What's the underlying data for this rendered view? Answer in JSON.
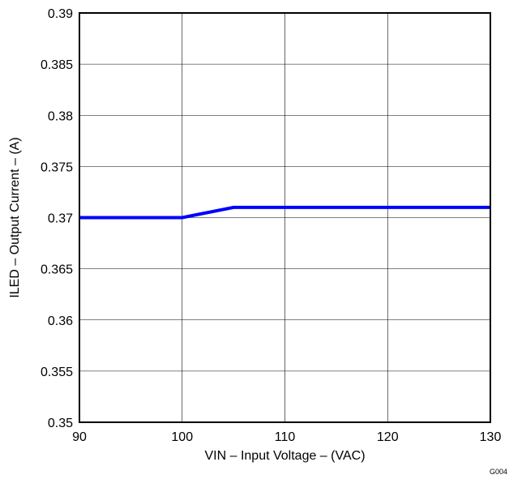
{
  "chart_data": {
    "type": "line",
    "xlabel": "VIN – Input Voltage – (VAC)",
    "ylabel": "ILED – Output Current – (A)",
    "xlim": [
      90,
      130
    ],
    "ylim": [
      0.35,
      0.39
    ],
    "xticks": [
      "90",
      "100",
      "110",
      "120",
      "130"
    ],
    "yticks": [
      "0.35",
      "0.355",
      "0.36",
      "0.365",
      "0.37",
      "0.375",
      "0.38",
      "0.385",
      "0.39"
    ],
    "grid": true,
    "series": [
      {
        "color": "#0000ff",
        "x": [
          90,
          100,
          105,
          110,
          120,
          130
        ],
        "y": [
          0.37,
          0.37,
          0.371,
          0.371,
          0.371,
          0.371
        ]
      }
    ],
    "figure_id": "G004"
  }
}
